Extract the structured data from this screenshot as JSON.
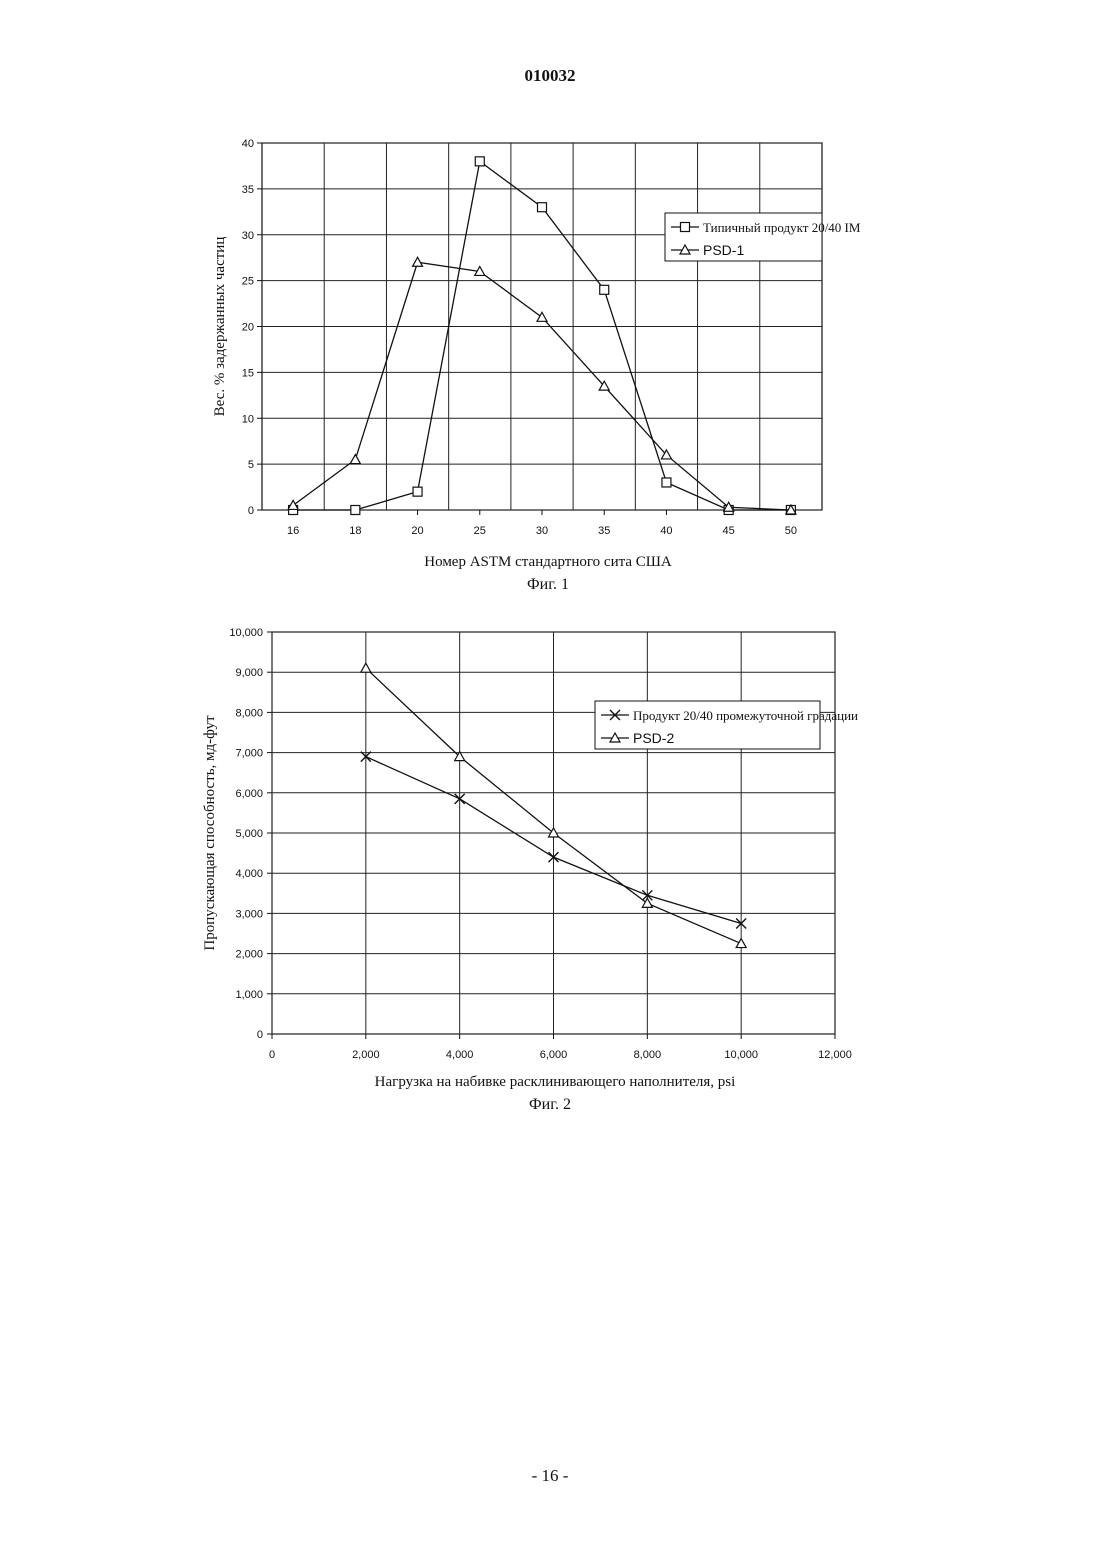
{
  "header": {
    "doc_number": "010032"
  },
  "footer": {
    "page_label": "- 16 -"
  },
  "chart_data": [
    {
      "type": "line",
      "caption": "Фиг. 1",
      "xlabel": "Номер ASTM стандартного сита США",
      "ylabel": "Вес. % задержанных частиц",
      "categories": [
        "16",
        "18",
        "20",
        "25",
        "30",
        "35",
        "40",
        "45",
        "50"
      ],
      "ylim": [
        0,
        40
      ],
      "yticks": [
        "0",
        "5",
        "10",
        "15",
        "20",
        "25",
        "30",
        "35",
        "40"
      ],
      "grid": true,
      "legend": "right",
      "series": [
        {
          "name": "Типичный продукт 20/40 IM",
          "marker": "square",
          "values": [
            0,
            0,
            2,
            38,
            33,
            24,
            3,
            0,
            0
          ]
        },
        {
          "name": "PSD-1",
          "marker": "triangle",
          "values": [
            0.5,
            5.5,
            27,
            26,
            21,
            13.5,
            6,
            0.3,
            0
          ]
        }
      ]
    },
    {
      "type": "line",
      "caption": "Фиг. 2",
      "xlabel": "Нагрузка на набивке расклинивающего наполнителя, psi",
      "ylabel": "Пропускающая способность, мд-фут",
      "xlim": [
        0,
        12000
      ],
      "ylim": [
        0,
        10000
      ],
      "xticks": [
        "0",
        "2,000",
        "4,000",
        "6,000",
        "8,000",
        "10,000",
        "12,000"
      ],
      "yticks": [
        "0",
        "1,000",
        "2,000",
        "3,000",
        "4,000",
        "5,000",
        "6,000",
        "7,000",
        "8,000",
        "9,000",
        "10,000"
      ],
      "grid": true,
      "legend": "right",
      "series": [
        {
          "name": "Продукт 20/40 промежуточной градации",
          "marker": "x",
          "x": [
            2000,
            4000,
            6000,
            8000,
            10000
          ],
          "y": [
            6900,
            5850,
            4400,
            3450,
            2750
          ]
        },
        {
          "name": "PSD-2",
          "marker": "triangle",
          "x": [
            2000,
            4000,
            6000,
            8000,
            10000
          ],
          "y": [
            9100,
            6900,
            5000,
            3250,
            2250
          ]
        }
      ]
    }
  ]
}
